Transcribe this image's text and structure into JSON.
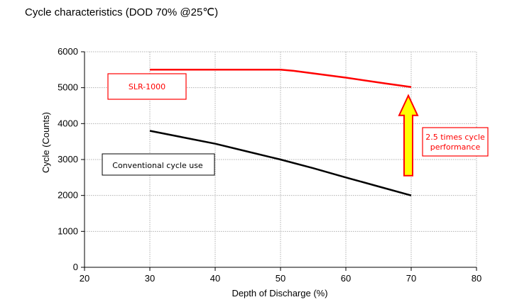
{
  "chart_data": {
    "type": "line",
    "title": "Cycle characteristics (DOD 70% @25℃)",
    "xlabel": "Depth of Discharge (%)",
    "ylabel": "Cycle (Counts)",
    "xlim": [
      20,
      80
    ],
    "ylim": [
      0,
      6000
    ],
    "xticks": [
      20,
      30,
      40,
      50,
      60,
      70,
      80
    ],
    "yticks": [
      0,
      1000,
      2000,
      3000,
      4000,
      5000,
      6000
    ],
    "grid": true,
    "series": [
      {
        "name": "SLR-1000",
        "color": "#ff0000",
        "x": [
          30,
          40,
          50,
          52,
          60,
          66,
          70
        ],
        "y": [
          5500,
          5500,
          5500,
          5470,
          5280,
          5120,
          5020
        ]
      },
      {
        "name": "Conventional cycle use",
        "color": "#000000",
        "x": [
          30,
          35,
          40,
          45,
          50,
          55,
          60,
          65,
          70
        ],
        "y": [
          3800,
          3620,
          3440,
          3220,
          3000,
          2760,
          2500,
          2250,
          2000
        ]
      }
    ],
    "annotations": [
      {
        "text": "2.5 times cycle performance",
        "x": 70,
        "from_y": 2000,
        "to_y": 5020,
        "style": "yellow-arrow-up"
      }
    ]
  },
  "labels": {
    "slr_box": "SLR-1000",
    "conventional_box": "Conventional cycle use",
    "annotation_line1": "2.5 times cycle",
    "annotation_line2": "performance"
  },
  "colors": {
    "slr": "#ff0000",
    "conventional": "#000000",
    "arrow_fill": "#ffff00",
    "arrow_stroke": "#ff0000",
    "grid": "#b0b0b0"
  }
}
